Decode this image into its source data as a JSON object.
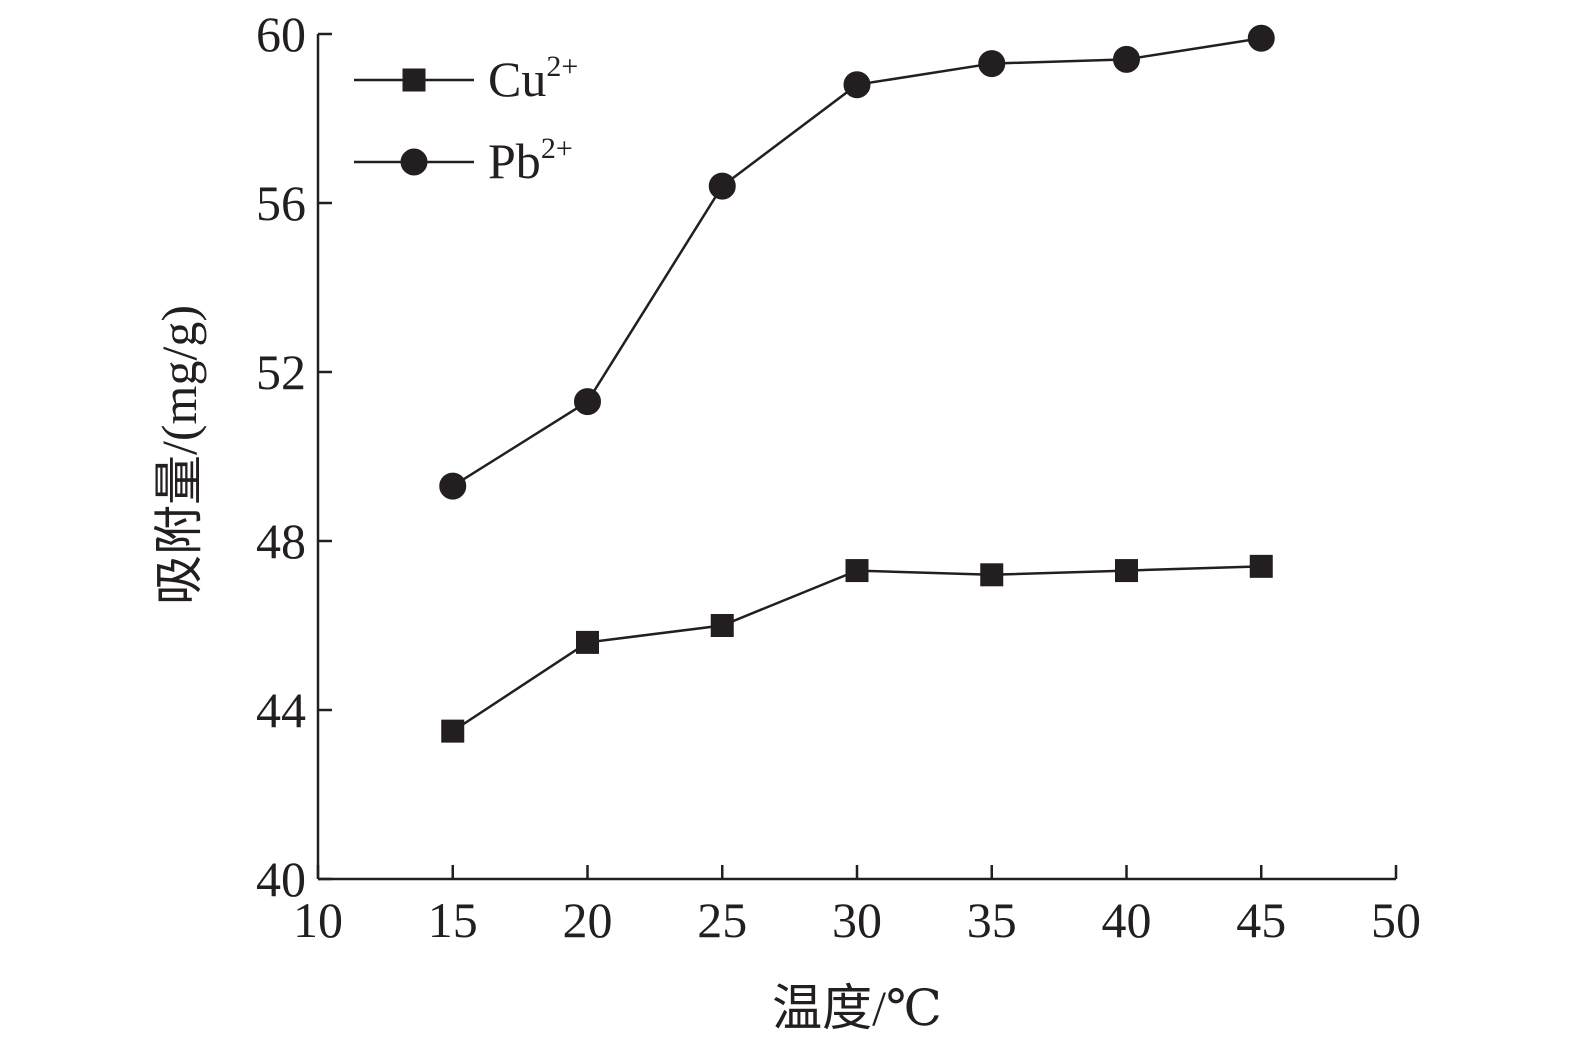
{
  "chart_data": {
    "type": "line",
    "xlabel": "温度/℃",
    "ylabel": "吸附量/(mg/g)",
    "xlim": [
      10,
      50
    ],
    "ylim": [
      40,
      60
    ],
    "xticks": [
      10,
      15,
      20,
      25,
      30,
      35,
      40,
      45,
      50
    ],
    "yticks": [
      40,
      44,
      48,
      52,
      56,
      60
    ],
    "x": [
      15,
      20,
      25,
      30,
      35,
      40,
      45
    ],
    "grid": false,
    "legend_position": "top-left",
    "series": [
      {
        "name_base": "Cu",
        "name_sup": "2+",
        "marker": "square",
        "color": "#231f20",
        "values": [
          43.5,
          45.6,
          46.0,
          47.3,
          47.2,
          47.3,
          47.4
        ]
      },
      {
        "name_base": "Pb",
        "name_sup": "2+",
        "marker": "circle",
        "color": "#231f20",
        "values": [
          49.3,
          51.3,
          56.4,
          58.8,
          59.3,
          59.4,
          59.9
        ]
      }
    ]
  }
}
